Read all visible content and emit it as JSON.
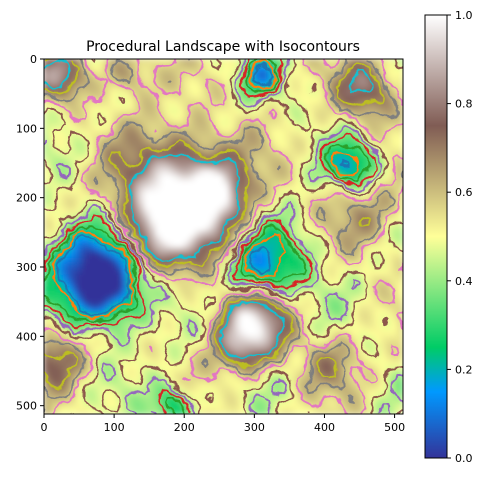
{
  "chart_data": {
    "type": "heatmap",
    "title": "Procedural Landscape with Isocontours",
    "xlabel": "",
    "ylabel": "",
    "xlim": [
      0,
      512
    ],
    "ylim": [
      512,
      0
    ],
    "x_ticks": [
      0,
      100,
      200,
      300,
      400,
      500
    ],
    "y_ticks": [
      0,
      100,
      200,
      300,
      400,
      500
    ],
    "x_tick_labels": [
      "0",
      "100",
      "200",
      "300",
      "400",
      "500"
    ],
    "y_tick_labels": [
      "0",
      "100",
      "200",
      "300",
      "400",
      "500"
    ],
    "colormap": "terrain",
    "colormap_stops": [
      {
        "value": 0.0,
        "color": "#333399"
      },
      {
        "value": 0.15,
        "color": "#0099ff"
      },
      {
        "value": 0.25,
        "color": "#00cc66"
      },
      {
        "value": 0.5,
        "color": "#ffff99"
      },
      {
        "value": 0.75,
        "color": "#805c54"
      },
      {
        "value": 1.0,
        "color": "#ffffff"
      }
    ],
    "colorbar": {
      "min": 0.0,
      "max": 1.0,
      "ticks": [
        0.0,
        0.2,
        0.4,
        0.6,
        0.8,
        1.0
      ],
      "tick_labels": [
        "0.0",
        "0.2",
        "0.4",
        "0.6",
        "0.8",
        "1.0"
      ]
    },
    "contour_colors": [
      "#1f77b4",
      "#ff7f0e",
      "#2ca02c",
      "#d62728",
      "#9467bd",
      "#8c564b",
      "#e377c2",
      "#7f7f7f",
      "#bcbd22",
      "#17becf"
    ],
    "grid": false
  }
}
